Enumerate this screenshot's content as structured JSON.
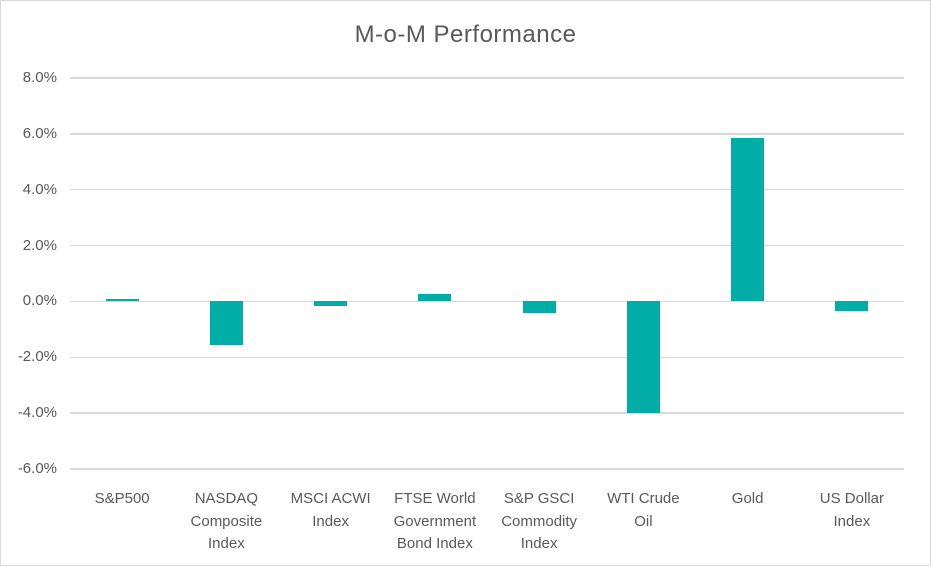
{
  "chart_data": {
    "type": "bar",
    "title": "M-o-M Performance",
    "categories": [
      "S&P500",
      "NASDAQ\nComposite\nIndex",
      "MSCI ACWI\nIndex",
      "FTSE World\nGovernment\nBond Index",
      "S&P GSCI\nCommodity\nIndex",
      "WTI Crude\nOil",
      "Gold",
      "US Dollar\nIndex"
    ],
    "values": [
      0.1,
      -1.55,
      -0.15,
      0.25,
      -0.4,
      -4.0,
      5.85,
      -0.35
    ],
    "value_unit": "%",
    "xlabel": "",
    "ylabel": "",
    "ylim": [
      -6,
      8
    ],
    "ytick_step": 2,
    "yticks": [
      {
        "label": "8.0%",
        "value": 8
      },
      {
        "label": "6.0%",
        "value": 6
      },
      {
        "label": "4.0%",
        "value": 4
      },
      {
        "label": "2.0%",
        "value": 2
      },
      {
        "label": "0.0%",
        "value": 0
      },
      {
        "label": "-2.0%",
        "value": -2
      },
      {
        "label": "-4.0%",
        "value": -4
      },
      {
        "label": "-6.0%",
        "value": -6
      }
    ],
    "grid": true,
    "legend": "none",
    "colors": {
      "bar": "#00AEA8",
      "text": "#595959",
      "gridline": "#D9D9D9",
      "border": "#D9D9D9",
      "background": "#FFFFFF"
    }
  }
}
